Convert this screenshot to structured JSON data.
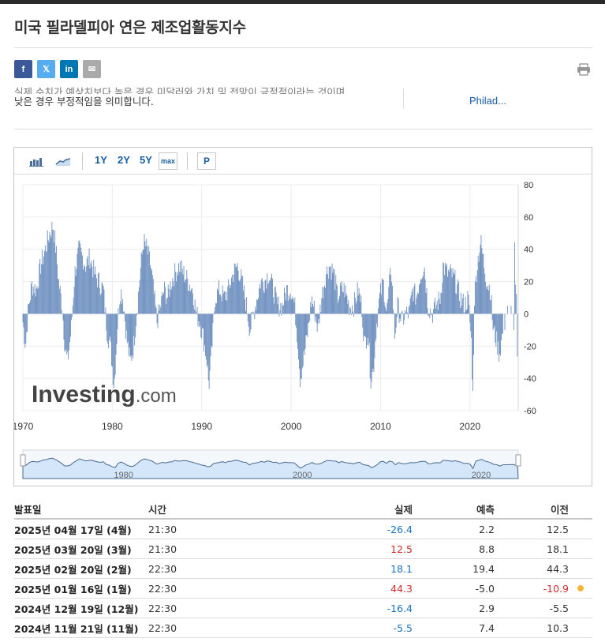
{
  "page": {
    "title": "미국 필라델피아 연은 제조업활동지수",
    "description_line1": "실제 수치가 예상치보다 높은 경우 미달러와 가치 및 전망이 긍정적이라는 것이며,",
    "description_line2": "낮은 경우 부정적임을 의미합니다.",
    "related_link": "Philad..."
  },
  "share": {
    "facebook": "f",
    "twitter": "𝕏",
    "linkedin": "in",
    "email": "✉"
  },
  "toolbar": {
    "range_1y": "1Y",
    "range_2y": "2Y",
    "range_5y": "5Y",
    "range_max": "max",
    "mode_p": "P"
  },
  "chart_data": {
    "type": "bar",
    "watermark": "Investing.com",
    "x_ticks": [
      "1970",
      "1980",
      "1990",
      "2000",
      "2010",
      "2020"
    ],
    "y_ticks": [
      "80",
      "60",
      "40",
      "20",
      "0",
      "-20",
      "-40",
      "-60"
    ],
    "ylim": [
      -60,
      80
    ],
    "xlim": [
      1970,
      2025.4
    ],
    "navigator_ticks": [
      "1980",
      "2000",
      "2020"
    ],
    "colors": {
      "bar": "#6d8fbf",
      "navigator_fill": "#d3e6fa",
      "navigator_line": "#4a6a8f"
    },
    "series": [
      {
        "anchors": [
          [
            1970.0,
            -5
          ],
          [
            1970.3,
            -20
          ],
          [
            1970.6,
            2
          ],
          [
            1971.0,
            18
          ],
          [
            1971.5,
            15
          ],
          [
            1972.0,
            30
          ],
          [
            1972.5,
            40
          ],
          [
            1973.0,
            50
          ],
          [
            1973.4,
            55
          ],
          [
            1973.7,
            40
          ],
          [
            1974.0,
            20
          ],
          [
            1974.4,
            5
          ],
          [
            1974.7,
            -20
          ],
          [
            1975.0,
            -30
          ],
          [
            1975.4,
            -10
          ],
          [
            1975.8,
            25
          ],
          [
            1976.3,
            40
          ],
          [
            1976.7,
            35
          ],
          [
            1977.0,
            30
          ],
          [
            1977.5,
            35
          ],
          [
            1978.0,
            25
          ],
          [
            1978.5,
            20
          ],
          [
            1979.0,
            15
          ],
          [
            1979.4,
            -10
          ],
          [
            1979.8,
            -20
          ],
          [
            1980.2,
            -45
          ],
          [
            1980.6,
            -5
          ],
          [
            1980.9,
            15
          ],
          [
            1981.2,
            10
          ],
          [
            1981.6,
            -15
          ],
          [
            1982.0,
            -30
          ],
          [
            1982.4,
            -20
          ],
          [
            1982.8,
            5
          ],
          [
            1983.2,
            30
          ],
          [
            1983.5,
            45
          ],
          [
            1983.9,
            40
          ],
          [
            1984.3,
            30
          ],
          [
            1984.7,
            10
          ],
          [
            1985.0,
            -5
          ],
          [
            1985.4,
            5
          ],
          [
            1985.8,
            15
          ],
          [
            1986.2,
            10
          ],
          [
            1986.6,
            20
          ],
          [
            1987.0,
            25
          ],
          [
            1987.5,
            30
          ],
          [
            1988.0,
            25
          ],
          [
            1988.5,
            20
          ],
          [
            1989.0,
            15
          ],
          [
            1989.4,
            0
          ],
          [
            1989.8,
            -5
          ],
          [
            1990.2,
            -15
          ],
          [
            1990.6,
            -30
          ],
          [
            1990.8,
            -45
          ],
          [
            1991.1,
            -25
          ],
          [
            1991.5,
            10
          ],
          [
            1992.0,
            15
          ],
          [
            1992.5,
            10
          ],
          [
            1993.0,
            15
          ],
          [
            1993.5,
            25
          ],
          [
            1994.0,
            30
          ],
          [
            1994.5,
            20
          ],
          [
            1995.0,
            5
          ],
          [
            1995.4,
            -10
          ],
          [
            1995.8,
            0
          ],
          [
            1996.2,
            10
          ],
          [
            1996.6,
            20
          ],
          [
            1997.0,
            20
          ],
          [
            1997.5,
            25
          ],
          [
            1998.0,
            15
          ],
          [
            1998.5,
            5
          ],
          [
            1999.0,
            5
          ],
          [
            1999.5,
            15
          ],
          [
            2000.0,
            15
          ],
          [
            2000.4,
            5
          ],
          [
            2000.8,
            -20
          ],
          [
            2001.0,
            -40
          ],
          [
            2001.5,
            -25
          ],
          [
            2001.9,
            -10
          ],
          [
            2002.3,
            10
          ],
          [
            2002.7,
            0
          ],
          [
            2003.0,
            -10
          ],
          [
            2003.4,
            10
          ],
          [
            2003.9,
            25
          ],
          [
            2004.3,
            30
          ],
          [
            2004.8,
            25
          ],
          [
            2005.2,
            10
          ],
          [
            2005.6,
            15
          ],
          [
            2006.0,
            15
          ],
          [
            2006.5,
            5
          ],
          [
            2007.0,
            5
          ],
          [
            2007.5,
            15
          ],
          [
            2007.9,
            5
          ],
          [
            2008.2,
            -20
          ],
          [
            2008.6,
            -10
          ],
          [
            2008.9,
            -40
          ],
          [
            2009.2,
            -35
          ],
          [
            2009.5,
            -10
          ],
          [
            2009.9,
            10
          ],
          [
            2010.3,
            20
          ],
          [
            2010.7,
            0
          ],
          [
            2011.2,
            30
          ],
          [
            2011.6,
            -15
          ],
          [
            2011.9,
            5
          ],
          [
            2012.4,
            -5
          ],
          [
            2012.8,
            0
          ],
          [
            2013.2,
            0
          ],
          [
            2013.6,
            15
          ],
          [
            2014.0,
            10
          ],
          [
            2014.5,
            25
          ],
          [
            2014.9,
            30
          ],
          [
            2015.3,
            5
          ],
          [
            2015.8,
            0
          ],
          [
            2016.2,
            5
          ],
          [
            2016.7,
            10
          ],
          [
            2017.0,
            30
          ],
          [
            2017.5,
            25
          ],
          [
            2017.9,
            25
          ],
          [
            2018.4,
            20
          ],
          [
            2018.9,
            10
          ],
          [
            2019.4,
            5
          ],
          [
            2019.8,
            10
          ],
          [
            2020.2,
            -20
          ],
          [
            2020.32,
            -56
          ],
          [
            2020.5,
            10
          ],
          [
            2020.8,
            30
          ],
          [
            2021.2,
            45
          ],
          [
            2021.6,
            30
          ],
          [
            2021.9,
            20
          ],
          [
            2022.3,
            15
          ],
          [
            2022.6,
            -10
          ],
          [
            2022.9,
            -15
          ],
          [
            2023.3,
            -25
          ],
          [
            2023.7,
            -10
          ],
          [
            2023.9,
            -10
          ],
          [
            2024.2,
            5
          ],
          [
            2024.6,
            5
          ],
          [
            2024.9,
            -10
          ],
          [
            2025.0,
            44.3
          ],
          [
            2025.1,
            18.1
          ],
          [
            2025.2,
            12.5
          ],
          [
            2025.3,
            -26.4
          ]
        ]
      }
    ]
  },
  "table": {
    "headers": {
      "date": "발표일",
      "time": "시간",
      "actual": "실제",
      "forecast": "예측",
      "previous": "이전"
    },
    "rows": [
      {
        "date": "2025년 04월 17일 (4월)",
        "time": "21:30",
        "actual": "-26.4",
        "forecast": "2.2",
        "previous": "12.5",
        "actual_color": "#1a73c4",
        "previous_color": "#333333",
        "revised": false
      },
      {
        "date": "2025년 03월 20일 (3월)",
        "time": "21:30",
        "actual": "12.5",
        "forecast": "8.8",
        "previous": "18.1",
        "actual_color": "#d12b2b",
        "previous_color": "#333333",
        "revised": false
      },
      {
        "date": "2025년 02월 20일 (2월)",
        "time": "22:30",
        "actual": "18.1",
        "forecast": "19.4",
        "previous": "44.3",
        "actual_color": "#1a73c4",
        "previous_color": "#333333",
        "revised": false
      },
      {
        "date": "2025년 01월 16일 (1월)",
        "time": "22:30",
        "actual": "44.3",
        "forecast": "-5.0",
        "previous": "-10.9",
        "actual_color": "#d12b2b",
        "previous_color": "#d12b2b",
        "revised": true
      },
      {
        "date": "2024년 12월 19일 (12월)",
        "time": "22:30",
        "actual": "-16.4",
        "forecast": "2.9",
        "previous": "-5.5",
        "actual_color": "#1a73c4",
        "previous_color": "#333333",
        "revised": false
      },
      {
        "date": "2024년 11월 21일 (11월)",
        "time": "22:30",
        "actual": "-5.5",
        "forecast": "7.4",
        "previous": "10.3",
        "actual_color": "#1a73c4",
        "previous_color": "#333333",
        "revised": false
      }
    ]
  }
}
